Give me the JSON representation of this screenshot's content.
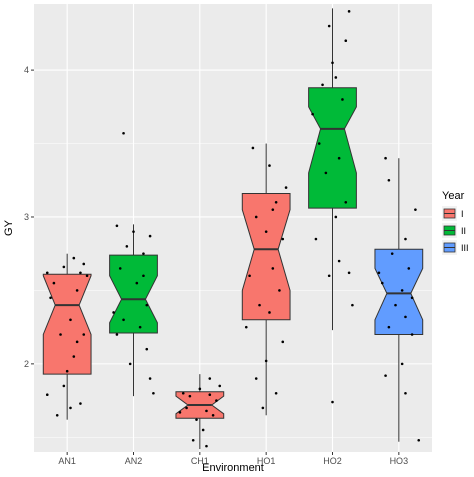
{
  "chart_data": {
    "type": "boxplot",
    "notched": true,
    "xlabel": "Environment",
    "ylabel": "GY",
    "categories": [
      "AN1",
      "AN2",
      "CH1",
      "HO1",
      "HO2",
      "HO3"
    ],
    "ylim": [
      1.4,
      4.45
    ],
    "yticks": [
      2,
      3,
      4
    ],
    "grid": true,
    "background": "#ebebeb",
    "legend": {
      "title": "Year",
      "position": "right",
      "entries": [
        {
          "label": "I",
          "color": "#f8766d"
        },
        {
          "label": "II",
          "color": "#00ba38"
        },
        {
          "label": "III",
          "color": "#619cff"
        }
      ]
    },
    "boxes": [
      {
        "category": "AN1",
        "year": "I",
        "whisker_low": 1.62,
        "q1": 1.93,
        "median": 2.4,
        "q3": 2.61,
        "whisker_high": 2.75,
        "notch_low": 2.2,
        "notch_high": 2.6,
        "points": [
          [
            -0.3,
            1.79
          ],
          [
            -0.15,
            1.65
          ],
          [
            0.05,
            1.7
          ],
          [
            0.2,
            1.73
          ],
          [
            -0.05,
            1.85
          ],
          [
            0.1,
            2.05
          ],
          [
            0.15,
            2.15
          ],
          [
            -0.1,
            2.2
          ],
          [
            0.25,
            2.2
          ],
          [
            0.05,
            2.3
          ],
          [
            -0.25,
            2.45
          ],
          [
            0.15,
            2.5
          ],
          [
            -0.2,
            2.55
          ],
          [
            0.2,
            2.62
          ],
          [
            -0.05,
            2.66
          ],
          [
            0.1,
            2.72
          ],
          [
            0.3,
            2.6
          ],
          [
            -0.3,
            2.62
          ],
          [
            0.0,
            1.95
          ],
          [
            0.25,
            2.68
          ]
        ]
      },
      {
        "category": "AN2",
        "year": "II",
        "whisker_low": 1.78,
        "q1": 2.21,
        "median": 2.44,
        "q3": 2.74,
        "whisker_high": 2.95,
        "notch_low": 2.28,
        "notch_high": 2.6,
        "points": [
          [
            -0.15,
            3.57
          ],
          [
            -0.25,
            2.94
          ],
          [
            0.25,
            2.87
          ],
          [
            0.0,
            2.9
          ],
          [
            -0.1,
            2.8
          ],
          [
            0.15,
            2.75
          ],
          [
            -0.2,
            2.65
          ],
          [
            0.05,
            2.55
          ],
          [
            0.2,
            2.4
          ],
          [
            -0.15,
            2.3
          ],
          [
            0.1,
            2.25
          ],
          [
            -0.25,
            2.2
          ],
          [
            0.2,
            2.1
          ],
          [
            -0.05,
            2.0
          ],
          [
            0.25,
            1.9
          ],
          [
            0.3,
            1.8
          ],
          [
            -0.3,
            2.35
          ],
          [
            0.15,
            2.6
          ]
        ]
      },
      {
        "category": "CH1",
        "year": "I",
        "whisker_low": 1.42,
        "q1": 1.63,
        "median": 1.72,
        "q3": 1.81,
        "whisker_high": 1.93,
        "notch_low": 1.66,
        "notch_high": 1.78,
        "points": [
          [
            -0.25,
            1.8
          ],
          [
            -0.15,
            1.78
          ],
          [
            0.0,
            1.83
          ],
          [
            0.15,
            1.79
          ],
          [
            0.25,
            1.75
          ],
          [
            -0.2,
            1.7
          ],
          [
            0.1,
            1.68
          ],
          [
            0.2,
            1.65
          ],
          [
            -0.05,
            1.62
          ],
          [
            0.05,
            1.55
          ],
          [
            -0.1,
            1.48
          ],
          [
            0.1,
            1.44
          ],
          [
            0.3,
            1.85
          ],
          [
            -0.3,
            1.67
          ],
          [
            0.15,
            1.9
          ]
        ]
      },
      {
        "category": "HO1",
        "year": "I",
        "whisker_low": 1.65,
        "q1": 2.3,
        "median": 2.78,
        "q3": 3.16,
        "whisker_high": 3.5,
        "notch_low": 2.5,
        "notch_high": 3.05,
        "points": [
          [
            -0.2,
            3.47
          ],
          [
            0.05,
            3.35
          ],
          [
            0.15,
            3.1
          ],
          [
            -0.15,
            3.0
          ],
          [
            0.25,
            2.85
          ],
          [
            0.0,
            2.9
          ],
          [
            -0.25,
            2.6
          ],
          [
            0.1,
            2.65
          ],
          [
            0.2,
            2.5
          ],
          [
            -0.1,
            2.4
          ],
          [
            0.05,
            2.35
          ],
          [
            -0.3,
            2.25
          ],
          [
            0.25,
            2.15
          ],
          [
            0.0,
            2.02
          ],
          [
            0.15,
            1.8
          ],
          [
            -0.05,
            1.7
          ],
          [
            -0.15,
            1.9
          ],
          [
            0.3,
            3.2
          ],
          [
            0.1,
            3.05
          ]
        ]
      },
      {
        "category": "HO2",
        "year": "II",
        "whisker_low": 2.23,
        "q1": 3.06,
        "median": 3.6,
        "q3": 3.88,
        "whisker_high": 4.42,
        "notch_low": 3.3,
        "notch_high": 3.75,
        "points": [
          [
            0.25,
            4.4
          ],
          [
            0.2,
            4.2
          ],
          [
            -0.05,
            4.3
          ],
          [
            0.0,
            4.05
          ],
          [
            0.05,
            3.95
          ],
          [
            -0.15,
            3.9
          ],
          [
            0.15,
            3.8
          ],
          [
            -0.2,
            3.5
          ],
          [
            0.1,
            3.4
          ],
          [
            -0.1,
            3.3
          ],
          [
            0.2,
            3.1
          ],
          [
            0.05,
            3.0
          ],
          [
            -0.25,
            2.85
          ],
          [
            0.1,
            2.7
          ],
          [
            -0.05,
            2.6
          ],
          [
            0.25,
            2.62
          ],
          [
            0.0,
            1.74
          ],
          [
            -0.3,
            3.7
          ],
          [
            0.3,
            2.4
          ]
        ]
      },
      {
        "category": "HO3",
        "year": "III",
        "whisker_low": 1.47,
        "q1": 2.2,
        "median": 2.48,
        "q3": 2.78,
        "whisker_high": 3.4,
        "notch_low": 2.3,
        "notch_high": 2.65,
        "points": [
          [
            -0.2,
            3.4
          ],
          [
            -0.15,
            3.25
          ],
          [
            0.25,
            3.05
          ],
          [
            0.1,
            2.85
          ],
          [
            -0.1,
            2.75
          ],
          [
            0.15,
            2.65
          ],
          [
            -0.25,
            2.55
          ],
          [
            0.05,
            2.5
          ],
          [
            0.2,
            2.45
          ],
          [
            -0.05,
            2.4
          ],
          [
            0.1,
            2.32
          ],
          [
            -0.15,
            2.25
          ],
          [
            0.2,
            2.2
          ],
          [
            0.05,
            2.0
          ],
          [
            -0.2,
            1.92
          ],
          [
            0.1,
            1.8
          ],
          [
            0.3,
            1.48
          ],
          [
            -0.3,
            2.62
          ]
        ]
      }
    ]
  }
}
